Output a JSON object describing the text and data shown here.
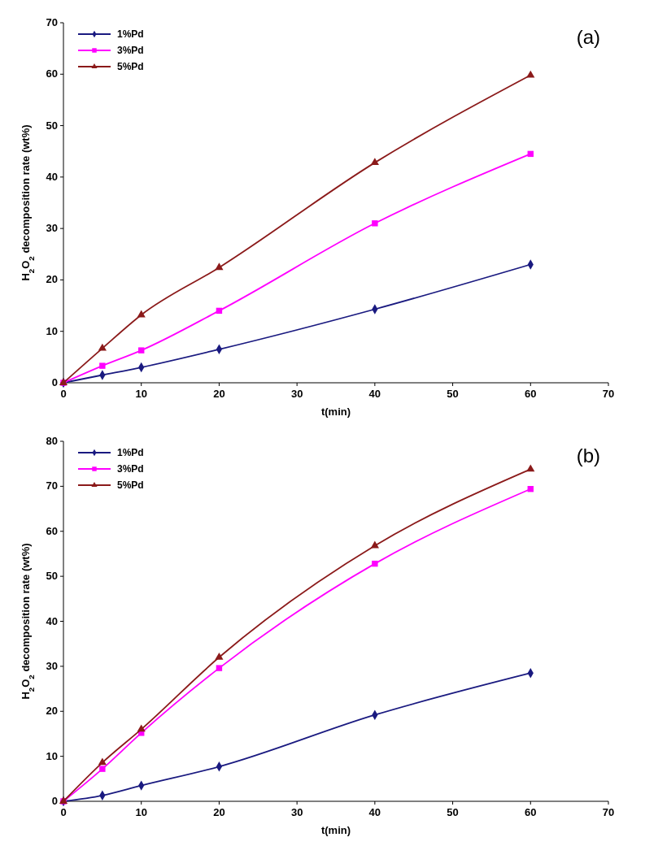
{
  "chart_data": [
    {
      "type": "line",
      "xlabel": "t(min)",
      "ylabel": "H$_{2}$O$_{2}$ decomposition rate (wt%)",
      "annotations": [
        "(a)"
      ],
      "x": [
        0,
        5,
        10,
        20,
        40,
        60
      ],
      "xlim": [
        0,
        70
      ],
      "xticks": [
        0,
        10,
        20,
        30,
        40,
        50,
        60,
        70
      ],
      "ylim": [
        0,
        70
      ],
      "yticks": [
        0,
        10,
        20,
        30,
        40,
        50,
        60,
        70
      ],
      "legend": "top left",
      "grid": false,
      "series": [
        {
          "name": "1%Pd",
          "color": "#1a1a80",
          "marker": "diamond",
          "values": [
            0,
            1.5,
            3,
            6.5,
            14.3,
            23
          ]
        },
        {
          "name": "3%Pd",
          "color": "#ff00ff",
          "marker": "square",
          "values": [
            0,
            3.3,
            6.3,
            14,
            31,
            44.5
          ]
        },
        {
          "name": "5%Pd",
          "color": "#8b1a1a",
          "marker": "triangle",
          "values": [
            0,
            6.7,
            13.2,
            22.4,
            42.8,
            59.8
          ]
        }
      ]
    },
    {
      "type": "line",
      "xlabel": "t(min)",
      "ylabel": "H$_{2}$O$_{2}$ decomposition rate (wt%)",
      "annotations": [
        "(b)"
      ],
      "x": [
        0,
        5,
        10,
        20,
        40,
        60
      ],
      "xlim": [
        0,
        70
      ],
      "xticks": [
        0,
        10,
        20,
        30,
        40,
        50,
        60,
        70
      ],
      "ylim": [
        0,
        80
      ],
      "yticks": [
        0,
        10,
        20,
        30,
        40,
        50,
        60,
        70,
        80
      ],
      "legend": "top left",
      "grid": false,
      "series": [
        {
          "name": "1%Pd",
          "color": "#1a1a80",
          "marker": "diamond",
          "values": [
            0,
            1.3,
            3.5,
            7.7,
            19.2,
            28.5
          ]
        },
        {
          "name": "3%Pd",
          "color": "#ff00ff",
          "marker": "square",
          "values": [
            0,
            7.2,
            15.2,
            29.6,
            52.8,
            69.4
          ]
        },
        {
          "name": "5%Pd",
          "color": "#8b1a1a",
          "marker": "triangle",
          "values": [
            0,
            8.6,
            16,
            32,
            56.8,
            73.8
          ]
        }
      ]
    }
  ]
}
